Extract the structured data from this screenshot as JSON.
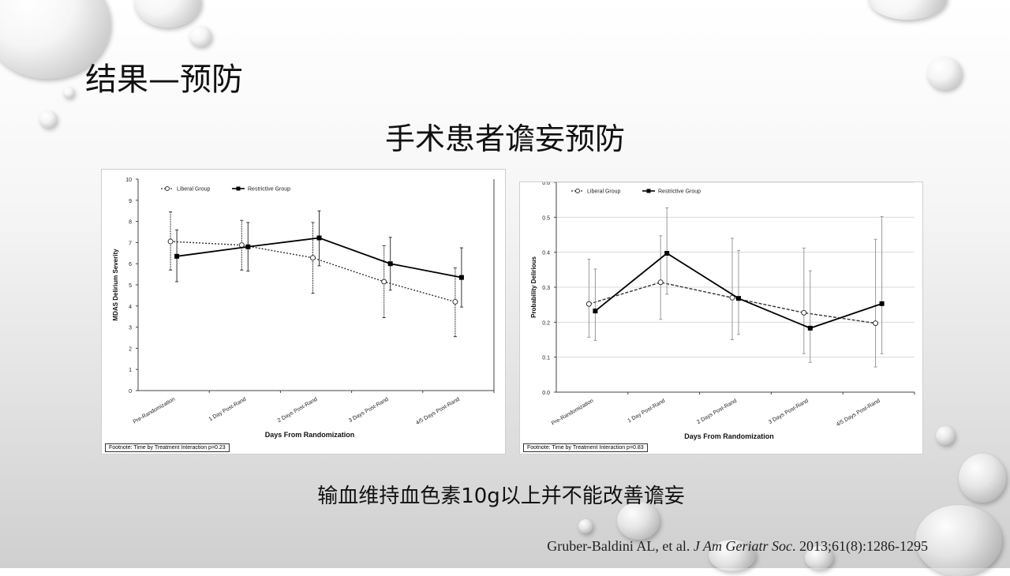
{
  "slide": {
    "title": "结果—预防",
    "subtitle": "手术患者谵妄预防",
    "conclusion": "输血维持血色素10g以上并不能改善谵妄",
    "citation_authors": "Gruber-Baldini AL, et al. ",
    "citation_journal": "J Am Geriatr Soc",
    "citation_rest": ". 2013;61(8):1286-1295"
  },
  "colors": {
    "liberal": "#333333",
    "restrictive": "#000000",
    "errorbar": "#999999"
  },
  "chart_data": [
    {
      "type": "line",
      "title": "",
      "xlabel": "Days From Randomization",
      "ylabel": "MDAS Delirium Severity",
      "categories": [
        "Pre-Randomization",
        "1 Day Post-Rand",
        "2 Days Post-Rand",
        "3 Days Post-Rand",
        "4/5 Days Post-Rand"
      ],
      "ylim": [
        0,
        10
      ],
      "yticks": [
        0,
        1,
        2,
        3,
        4,
        5,
        6,
        7,
        8,
        9,
        10
      ],
      "legend_position": "top-left",
      "grid": false,
      "footnote": "Footnote: Time by Treatment Interaction p=0.23",
      "series": [
        {
          "name": "Liberal Group",
          "style": "dotted-open-circle",
          "values": [
            7.05,
            6.88,
            6.28,
            5.15,
            4.2
          ],
          "error_low": [
            5.7,
            5.7,
            4.6,
            3.45,
            2.55
          ],
          "error_high": [
            8.45,
            8.05,
            7.95,
            6.85,
            5.8
          ]
        },
        {
          "name": "Restrictive Group",
          "style": "solid-filled-square",
          "values": [
            6.35,
            6.8,
            7.22,
            6.0,
            5.35
          ],
          "error_low": [
            5.15,
            5.65,
            5.9,
            4.75,
            3.95
          ],
          "error_high": [
            7.6,
            7.95,
            8.5,
            7.25,
            6.75
          ]
        }
      ]
    },
    {
      "type": "line",
      "title": "",
      "xlabel": "Days From Randomization",
      "ylabel": "Probability Delirious",
      "categories": [
        "Pre-Randomization",
        "1 Day Post-Rand",
        "2 Days Post-Rand",
        "3 Days Post-Rand",
        "4/5 Days Post-Rand"
      ],
      "ylim": [
        0,
        0.6
      ],
      "yticks": [
        0,
        0.1,
        0.2,
        0.3,
        0.4,
        0.5,
        0.6
      ],
      "legend_position": "top-left",
      "grid": true,
      "footnote": "Footnote: Time by Treatment Interaction p=0.83",
      "series": [
        {
          "name": "Liberal Group",
          "style": "dashed-open-circle",
          "values": [
            0.252,
            0.314,
            0.27,
            0.227,
            0.197
          ],
          "error_low": [
            0.157,
            0.208,
            0.15,
            0.11,
            0.072
          ],
          "error_high": [
            0.38,
            0.447,
            0.44,
            0.412,
            0.437
          ]
        },
        {
          "name": "Restrictive Group",
          "style": "solid-filled-square",
          "values": [
            0.232,
            0.397,
            0.268,
            0.183,
            0.253
          ],
          "error_low": [
            0.148,
            0.28,
            0.165,
            0.085,
            0.11
          ],
          "error_high": [
            0.352,
            0.527,
            0.405,
            0.347,
            0.502
          ]
        }
      ]
    }
  ]
}
